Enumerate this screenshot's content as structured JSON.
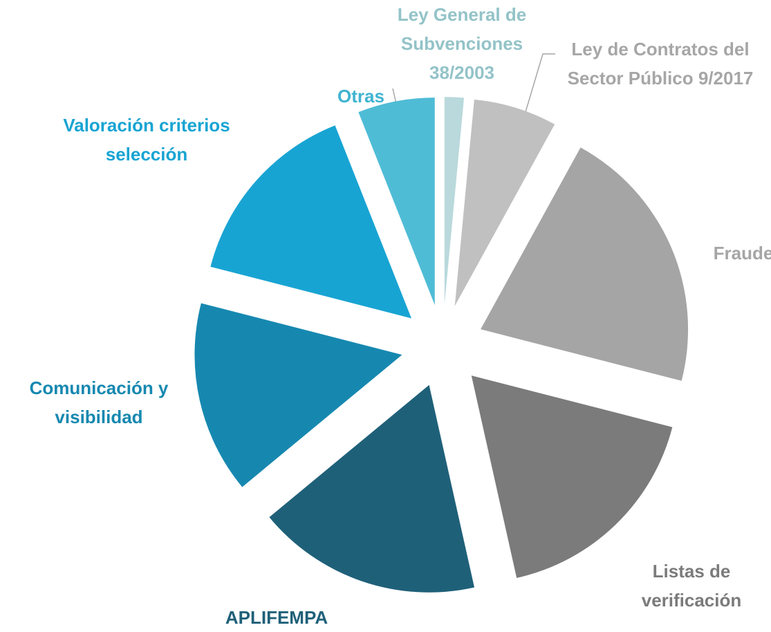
{
  "chart_data": {
    "type": "pie",
    "categories": [
      "Ley General de Subvenciones 38/2003",
      "Ley de Contratos del Sector Público 9/2017",
      "Fraude",
      "Listas de verificación",
      "APLIFEMPA",
      "Comunicación y visibilidad",
      "Valoración criterios selección",
      "Otras"
    ],
    "values": [
      1.5,
      6.5,
      21,
      17.5,
      17.5,
      15,
      15,
      6
    ],
    "colors": [
      "#b9d9dc",
      "#c0c0c0",
      "#a5a5a5",
      "#7b7b7b",
      "#1f6079",
      "#1688b0",
      "#18a4d3",
      "#4fbcd6"
    ],
    "label_colors": [
      "#93c3c8",
      "#a6a6a6",
      "#a5a5a5",
      "#7b7b7b",
      "#1f6079",
      "#1688b0",
      "#18a4d3",
      "#3fb3d0"
    ]
  }
}
